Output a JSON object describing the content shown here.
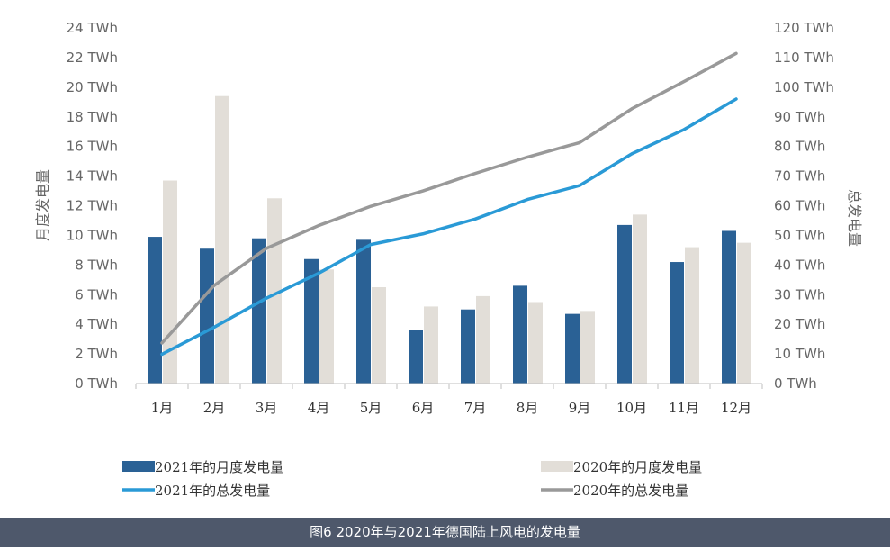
{
  "caption": "图6 2020年与2021年德国陆上风电的发电量",
  "chart_data": {
    "type": "bar+line",
    "categories": [
      "1月",
      "2月",
      "3月",
      "4月",
      "5月",
      "6月",
      "7月",
      "8月",
      "9月",
      "10月",
      "11月",
      "12月"
    ],
    "y_left": {
      "label": "月度发电量",
      "min": 0,
      "max": 24,
      "step": 2,
      "ticks": [
        "0 TWh",
        "2 TWh",
        "4 TWh",
        "6 TWh",
        "8 TWh",
        "10 TWh",
        "12 TWh",
        "14 TWh",
        "16 TWh",
        "18 TWh",
        "20 TWh",
        "22 TWh",
        "24 TWh"
      ]
    },
    "y_right": {
      "label": "总发电量",
      "min": 0,
      "max": 120,
      "step": 10,
      "ticks": [
        "0 TWh",
        "10 TWh",
        "20 TWh",
        "30 TWh",
        "40 TWh",
        "50 TWh",
        "60 TWh",
        "70 TWh",
        "80 TWh",
        "90 TWh",
        "100 TWh",
        "110 TWh",
        "120 TWh"
      ]
    },
    "series": [
      {
        "name": "2021年的月度发电量",
        "type": "bar",
        "axis": "left",
        "color": "#2a6195",
        "values": [
          9.9,
          9.1,
          9.8,
          8.4,
          9.7,
          3.6,
          5.0,
          6.6,
          4.7,
          10.7,
          8.2,
          10.3
        ]
      },
      {
        "name": "2020年的月度发电量",
        "type": "bar",
        "axis": "left",
        "color": "#e2ded8",
        "values": [
          13.7,
          19.4,
          12.5,
          7.7,
          6.5,
          5.2,
          5.9,
          5.5,
          4.9,
          11.4,
          9.2,
          9.5
        ]
      },
      {
        "name": "2021年的总发电量",
        "type": "line",
        "axis": "right",
        "color": "#2a9ad6",
        "values": [
          9.9,
          19.0,
          28.8,
          37.2,
          46.9,
          50.5,
          55.5,
          62.1,
          66.8,
          77.5,
          85.7,
          96.0
        ]
      },
      {
        "name": "2020年的总发电量",
        "type": "line",
        "axis": "right",
        "color": "#999999",
        "values": [
          13.7,
          33.1,
          45.6,
          53.3,
          59.8,
          65.0,
          70.9,
          76.4,
          81.3,
          92.7,
          101.9,
          111.4
        ]
      }
    ],
    "legend_position": "bottom",
    "grid": false
  }
}
